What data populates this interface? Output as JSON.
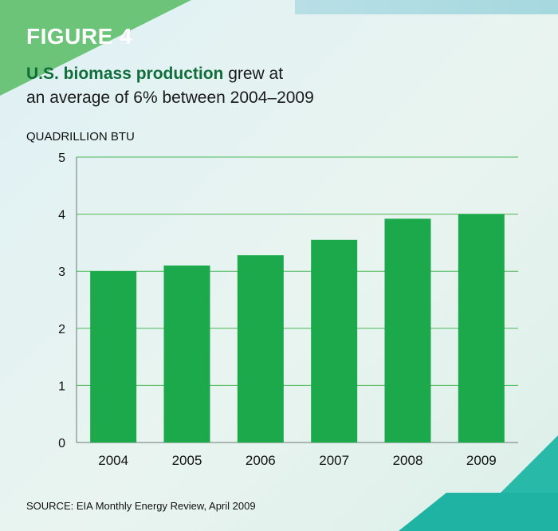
{
  "figure": {
    "label": "FIGURE 4",
    "headline_bold": "U.S. biomass production",
    "headline_rest_1": " grew at",
    "headline_line2": "an average of 6% between 2004–2009",
    "source": "SOURCE: EIA Monthly Energy Review, April 2009"
  },
  "chart_data": {
    "type": "bar",
    "title": "U.S. biomass production grew at an average of 6% between 2004–2009",
    "ylabel": "QUADRILLION BTU",
    "xlabel": "",
    "categories": [
      "2004",
      "2005",
      "2006",
      "2007",
      "2008",
      "2009"
    ],
    "values": [
      3.0,
      3.1,
      3.28,
      3.55,
      3.92,
      4.0
    ],
    "ylim": [
      0,
      5
    ],
    "yticks": [
      0,
      1,
      2,
      3,
      4,
      5
    ],
    "grid": true,
    "legend": "none",
    "colors": {
      "bar": "#1ba94c",
      "grid": "#4cb85a",
      "axis": "#6b7a70"
    }
  }
}
